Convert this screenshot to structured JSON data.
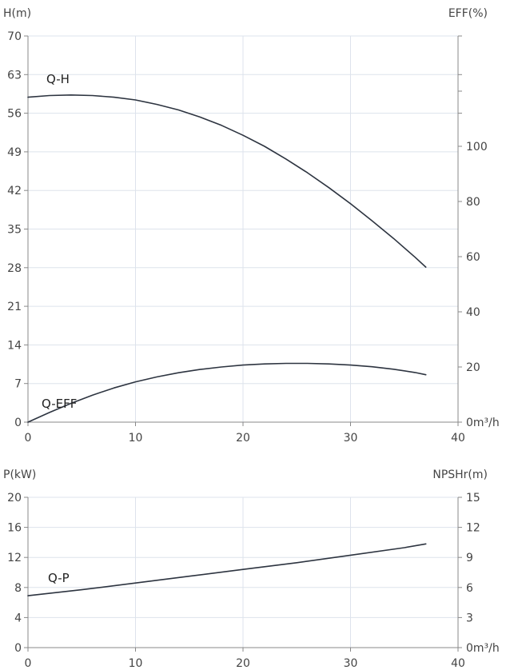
{
  "chart_data": [
    {
      "type": "line",
      "ylabel_left": "H(m)",
      "ylabel_right": "EFF(%)",
      "xlabel": "0m³/h",
      "xlim": [
        0,
        40
      ],
      "x_ticks": [
        "0",
        "10",
        "20",
        "30",
        "40"
      ],
      "ylim_left": [
        0,
        70
      ],
      "y_ticks_left": [
        "0",
        "7",
        "14",
        "21",
        "28",
        "35",
        "42",
        "49",
        "56",
        "63",
        "70"
      ],
      "ylim_right": [
        0,
        140
      ],
      "y_ticks_right": [
        "0",
        "20",
        "40",
        "60",
        "80",
        "100"
      ],
      "grid": true,
      "series": [
        {
          "name": "Q-H",
          "axis": "left",
          "x": [
            0,
            2,
            4,
            6,
            8,
            10,
            12,
            14,
            16,
            18,
            20,
            22,
            24,
            26,
            28,
            30,
            32,
            34,
            36,
            37
          ],
          "y": [
            58.9,
            59.2,
            59.3,
            59.2,
            58.9,
            58.4,
            57.6,
            56.6,
            55.3,
            53.8,
            52.0,
            50.0,
            47.7,
            45.2,
            42.5,
            39.6,
            36.5,
            33.3,
            29.9,
            28.1
          ]
        },
        {
          "name": "Q-EFF",
          "axis": "right",
          "x": [
            0,
            2,
            4,
            6,
            8,
            10,
            12,
            14,
            16,
            18,
            20,
            22,
            24,
            26,
            28,
            30,
            32,
            34,
            36,
            37
          ],
          "y": [
            0,
            3.5,
            6.8,
            9.8,
            12.4,
            14.6,
            16.4,
            17.9,
            19.1,
            20.0,
            20.7,
            21.1,
            21.3,
            21.3,
            21.1,
            20.7,
            20.1,
            19.2,
            18.0,
            17.2
          ]
        }
      ]
    },
    {
      "type": "line",
      "ylabel_left": "P(kW)",
      "ylabel_right": "NPSHr(m)",
      "xlabel": "0m³/h",
      "xlim": [
        0,
        40
      ],
      "x_ticks": [
        "0",
        "10",
        "20",
        "30",
        "40"
      ],
      "ylim_left": [
        0,
        20
      ],
      "y_ticks_left": [
        "0",
        "4",
        "8",
        "12",
        "16",
        "20"
      ],
      "ylim_right": [
        0,
        15
      ],
      "y_ticks_right": [
        "0",
        "3",
        "6",
        "9",
        "12",
        "15"
      ],
      "grid": true,
      "series": [
        {
          "name": "Q-P",
          "axis": "left",
          "x": [
            0,
            5,
            10,
            15,
            20,
            25,
            30,
            35,
            37
          ],
          "y": [
            6.9,
            7.7,
            8.6,
            9.5,
            10.4,
            11.3,
            12.3,
            13.3,
            13.8
          ]
        }
      ]
    }
  ]
}
